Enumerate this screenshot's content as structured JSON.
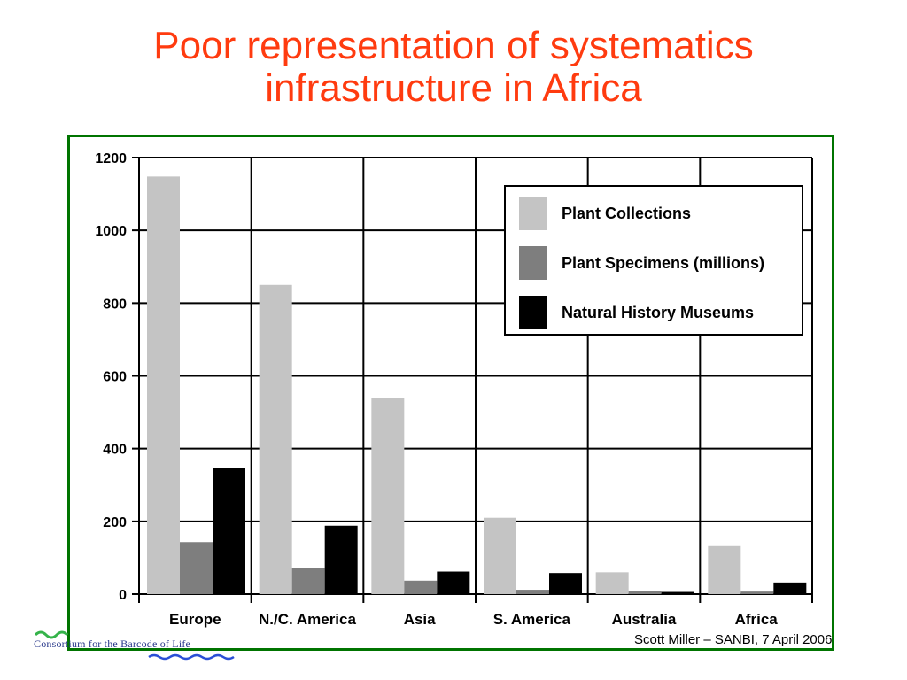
{
  "slide": {
    "title_line1": "Poor representation of systematics",
    "title_line2": "infrastructure in Africa",
    "footer": "Scott Miller – SANBI, 7 April 2006",
    "logo_text": "Consortium for the Barcode of Life"
  },
  "colors": {
    "title": "#ff3b0f",
    "frame": "#007400",
    "plant_collections": "#c4c4c4",
    "plant_specimens": "#7e7e7e",
    "museums": "#000000",
    "logo_green": "#35b34a",
    "logo_blue": "#2b4fd6"
  },
  "chart_data": {
    "type": "bar",
    "title": "",
    "xlabel": "",
    "ylabel": "",
    "ylim": [
      0,
      1200
    ],
    "yticks": [
      0,
      200,
      400,
      600,
      800,
      1000,
      1200
    ],
    "grid": true,
    "legend_position": "top-right",
    "categories": [
      "Europe",
      "N./C. America",
      "Asia",
      "S. America",
      "Australia",
      "Africa"
    ],
    "series": [
      {
        "name": "Plant Collections",
        "color": "#c4c4c4",
        "values": [
          1148,
          850,
          540,
          210,
          60,
          132
        ]
      },
      {
        "name": "Plant Specimens (millions)",
        "color": "#7e7e7e",
        "values": [
          143,
          72,
          37,
          12,
          8,
          7
        ]
      },
      {
        "name": "Natural History Museums",
        "color": "#000000",
        "values": [
          348,
          188,
          62,
          58,
          6,
          32
        ]
      }
    ]
  }
}
